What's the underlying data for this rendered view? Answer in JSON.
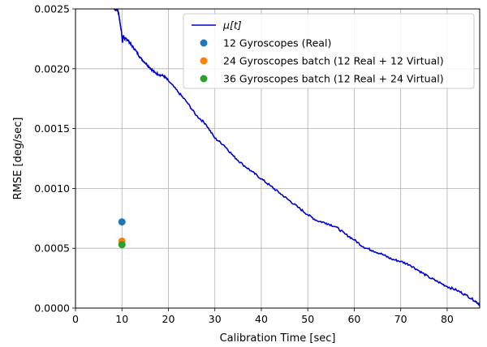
{
  "chart_data": {
    "type": "line",
    "xlabel": "Calibration Time [sec]",
    "ylabel": "RMSE [deg/sec]",
    "xlim": [
      0,
      87
    ],
    "ylim": [
      0,
      0.0025
    ],
    "x_ticks": [
      0,
      10,
      20,
      30,
      40,
      50,
      60,
      70,
      80
    ],
    "y_ticks": [
      0.0,
      0.0005,
      0.001,
      0.0015,
      0.002,
      0.0025
    ],
    "x_tick_labels": [
      "0",
      "10",
      "20",
      "30",
      "40",
      "50",
      "60",
      "70",
      "80"
    ],
    "y_tick_labels": [
      "0.0000",
      "0.0005",
      "0.0010",
      "0.0015",
      "0.0020",
      "0.0025"
    ],
    "grid": true,
    "legend_position": "top-right",
    "line_series": {
      "name": "μ[t]",
      "color": "#0000cc",
      "points": [
        [
          8.0,
          0.00253
        ],
        [
          8.5,
          0.00249
        ],
        [
          9.0,
          0.0025
        ],
        [
          9.3,
          0.00246
        ],
        [
          9.6,
          0.00238
        ],
        [
          9.9,
          0.00231
        ],
        [
          10.1,
          0.00222
        ],
        [
          10.3,
          0.00228
        ],
        [
          10.6,
          0.00225
        ],
        [
          11.0,
          0.00225
        ],
        [
          11.5,
          0.00223
        ],
        [
          12.0,
          0.0022
        ],
        [
          13.0,
          0.00215
        ],
        [
          14.0,
          0.00209
        ],
        [
          15.0,
          0.00205
        ],
        [
          16.0,
          0.00201
        ],
        [
          17.0,
          0.00197
        ],
        [
          18.0,
          0.00195
        ],
        [
          19.0,
          0.00194
        ],
        [
          20.0,
          0.0019
        ],
        [
          22.0,
          0.00181
        ],
        [
          24.0,
          0.00172
        ],
        [
          26.0,
          0.00161
        ],
        [
          28.0,
          0.00154
        ],
        [
          30.0,
          0.00142
        ],
        [
          32.0,
          0.00136
        ],
        [
          34.0,
          0.00127
        ],
        [
          36.0,
          0.0012
        ],
        [
          38.0,
          0.00114
        ],
        [
          40.0,
          0.00108
        ],
        [
          42.0,
          0.00102
        ],
        [
          44.0,
          0.00096
        ],
        [
          46.0,
          0.0009
        ],
        [
          48.0,
          0.00084
        ],
        [
          50.0,
          0.00078
        ],
        [
          52.0,
          0.00073
        ],
        [
          54.0,
          0.00071
        ],
        [
          56.0,
          0.00068
        ],
        [
          58.0,
          0.00062
        ],
        [
          60.0,
          0.00057
        ],
        [
          62.0,
          0.00051
        ],
        [
          64.0,
          0.00048
        ],
        [
          66.0,
          0.00045
        ],
        [
          68.0,
          0.00041
        ],
        [
          70.0,
          0.00039
        ],
        [
          72.0,
          0.00036
        ],
        [
          74.0,
          0.00031
        ],
        [
          76.0,
          0.00026
        ],
        [
          78.0,
          0.00022
        ],
        [
          80.0,
          0.00018
        ],
        [
          82.0,
          0.00015
        ],
        [
          84.0,
          0.00011
        ],
        [
          86.0,
          6e-05
        ],
        [
          87.0,
          3e-05
        ]
      ]
    },
    "scatter_series": [
      {
        "name": "12 Gyroscopes (Real)",
        "color": "#1f77b4",
        "x": 10,
        "y": 0.00072
      },
      {
        "name": "24 Gyroscopes batch (12 Real + 12 Virtual)",
        "color": "#ff7f0e",
        "x": 10,
        "y": 0.00056
      },
      {
        "name": "36 Gyroscopes batch (12 Real + 24 Virtual)",
        "color": "#2ca02c",
        "x": 10,
        "y": 0.00053
      }
    ]
  }
}
